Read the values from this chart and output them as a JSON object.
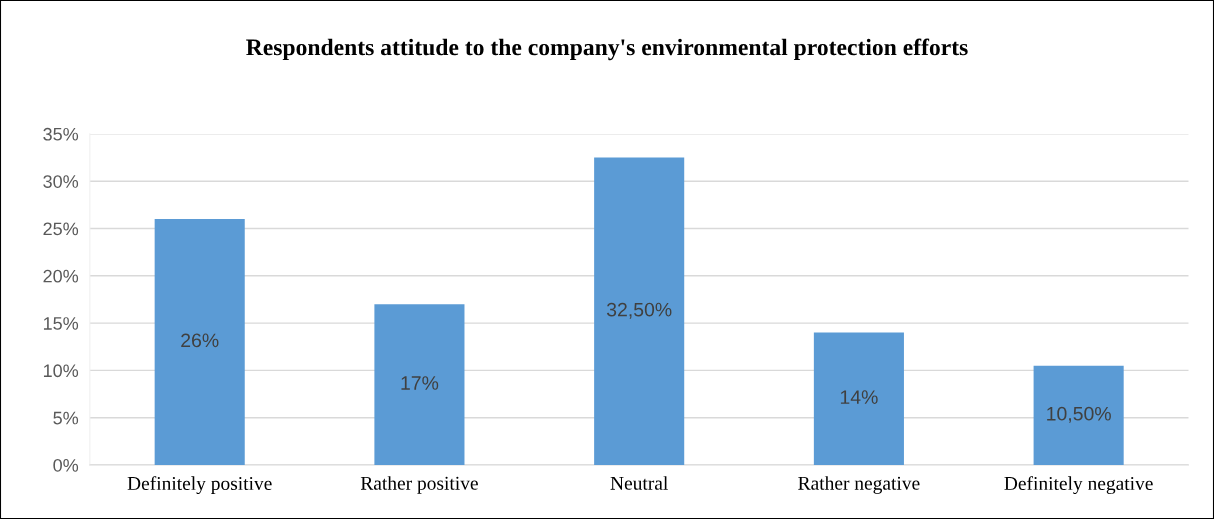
{
  "chart_data": {
    "type": "bar",
    "title": "Respondents attitude to the company's environmental protection efforts",
    "categories": [
      "Definitely positive",
      "Rather positive",
      "Neutral",
      "Rather negative",
      "Definitely negative"
    ],
    "values": [
      26,
      17,
      32.5,
      14,
      10.5
    ],
    "value_labels": [
      "26%",
      "17%",
      "32,50%",
      "14%",
      "10,50%"
    ],
    "color": "#5b9bd5",
    "ylim": [
      0,
      35
    ],
    "yticks": [
      {
        "value": 0,
        "label": "0%"
      },
      {
        "value": 5,
        "label": "5%"
      },
      {
        "value": 10,
        "label": "10%"
      },
      {
        "value": 15,
        "label": "15%"
      },
      {
        "value": 20,
        "label": "20%"
      },
      {
        "value": 25,
        "label": "25%"
      },
      {
        "value": 30,
        "label": "30%"
      },
      {
        "value": 35,
        "label": "35%"
      }
    ],
    "grid": "y"
  }
}
